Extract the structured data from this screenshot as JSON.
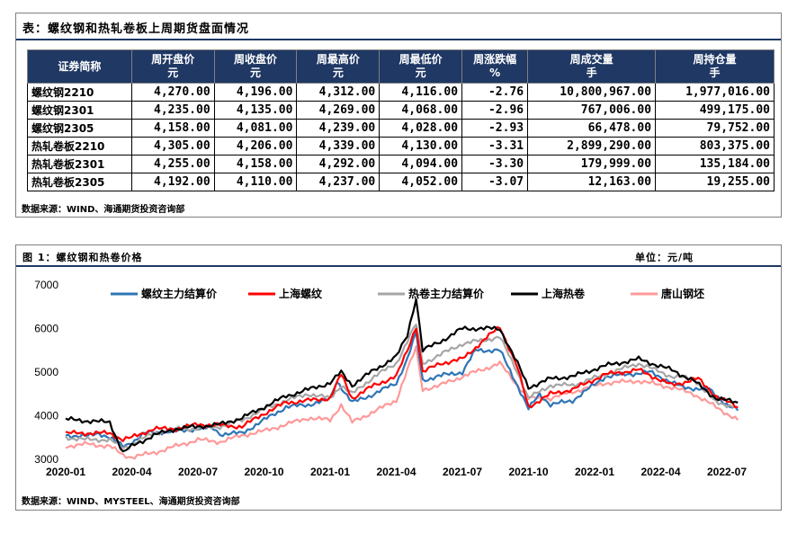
{
  "table": {
    "title": "表：螺纹钢和热轧卷板上周期货盘面情况",
    "headers": [
      {
        "l1": "证券简称",
        "l2": ""
      },
      {
        "l1": "周开盘价",
        "l2": "元"
      },
      {
        "l1": "周收盘价",
        "l2": "元"
      },
      {
        "l1": "周最高价",
        "l2": "元"
      },
      {
        "l1": "周最低价",
        "l2": "元"
      },
      {
        "l1": "周涨跌幅",
        "l2": "%"
      },
      {
        "l1": "周成交量",
        "l2": "手"
      },
      {
        "l1": "周持仓量",
        "l2": "手"
      }
    ],
    "rows": [
      [
        "螺纹钢2210",
        "4,270.00",
        "4,196.00",
        "4,312.00",
        "4,116.00",
        "-2.76",
        "10,800,967.00",
        "1,977,016.00"
      ],
      [
        "螺纹钢2301",
        "4,235.00",
        "4,135.00",
        "4,269.00",
        "4,068.00",
        "-2.96",
        "767,006.00",
        "499,175.00"
      ],
      [
        "螺纹钢2305",
        "4,158.00",
        "4,081.00",
        "4,239.00",
        "4,028.00",
        "-2.93",
        "66,478.00",
        "79,752.00"
      ],
      [
        "热轧卷板2210",
        "4,305.00",
        "4,206.00",
        "4,339.00",
        "4,130.00",
        "-3.31",
        "2,899,290.00",
        "803,375.00"
      ],
      [
        "热轧卷板2301",
        "4,255.00",
        "4,158.00",
        "4,292.00",
        "4,094.00",
        "-3.30",
        "179,999.00",
        "135,184.00"
      ],
      [
        "热轧卷板2305",
        "4,192.00",
        "4,110.00",
        "4,237.00",
        "4,052.00",
        "-3.07",
        "12,163.00",
        "19,255.00"
      ]
    ],
    "source": "数据来源：WIND、海通期货投资咨询部"
  },
  "figure": {
    "title": "图 1：螺纹钢和热卷价格",
    "unit": "单位：元/吨",
    "source": "数据来源：WIND、MYSTEEL、海通期货投资咨询部"
  },
  "chart_data": {
    "type": "line",
    "title": "",
    "xlabel": "",
    "ylabel": "",
    "ylim": [
      3000,
      7000
    ],
    "yticks": [
      "3000",
      "4000",
      "5000",
      "6000",
      "7000"
    ],
    "xticks": [
      "2020-01",
      "2020-04",
      "2020-07",
      "2020-10",
      "2021-01",
      "2021-04",
      "2021-07",
      "2021-10",
      "2022-01",
      "2022-04",
      "2022-07"
    ],
    "legend_position": "top",
    "grid": false,
    "series": [
      {
        "name": "螺纹主力结算价",
        "color": "#2e75b6",
        "points": [
          [
            0,
            3550
          ],
          [
            1,
            3530
          ],
          [
            1.5,
            3600
          ],
          [
            2,
            3500
          ],
          [
            2.6,
            3300
          ],
          [
            3,
            3390
          ],
          [
            3.6,
            3600
          ],
          [
            4,
            3620
          ],
          [
            5,
            3640
          ],
          [
            6,
            3700
          ],
          [
            6.7,
            3720
          ],
          [
            7,
            3580
          ],
          [
            8,
            3600
          ],
          [
            9,
            3900
          ],
          [
            10,
            4200
          ],
          [
            11,
            4250
          ],
          [
            12,
            4380
          ],
          [
            12.3,
            4800
          ],
          [
            13,
            4300
          ],
          [
            14,
            4500
          ],
          [
            15,
            4750
          ],
          [
            15.5,
            5300
          ],
          [
            15.9,
            5900
          ],
          [
            16.2,
            4800
          ],
          [
            16.8,
            4900
          ],
          [
            18,
            5000
          ],
          [
            18.6,
            5500
          ],
          [
            19.7,
            5500
          ],
          [
            20.4,
            4800
          ],
          [
            21,
            4150
          ],
          [
            21.5,
            4500
          ],
          [
            22,
            4250
          ],
          [
            23,
            4350
          ],
          [
            24.5,
            4900
          ],
          [
            26.5,
            5000
          ],
          [
            28,
            4650
          ],
          [
            29.2,
            4600
          ],
          [
            30,
            4260
          ],
          [
            30.5,
            4120
          ]
        ]
      },
      {
        "name": "上海螺纹",
        "color": "#ff0000",
        "points": [
          [
            0,
            3600
          ],
          [
            1,
            3600
          ],
          [
            2,
            3600
          ],
          [
            2.6,
            3450
          ],
          [
            3,
            3500
          ],
          [
            4,
            3700
          ],
          [
            5,
            3700
          ],
          [
            6,
            3800
          ],
          [
            7,
            3780
          ],
          [
            8,
            3750
          ],
          [
            9,
            4050
          ],
          [
            10,
            4300
          ],
          [
            11,
            4350
          ],
          [
            12,
            4400
          ],
          [
            12.5,
            4950
          ],
          [
            13,
            4400
          ],
          [
            14,
            4700
          ],
          [
            15,
            4900
          ],
          [
            15.5,
            5500
          ],
          [
            15.9,
            6050
          ],
          [
            16.2,
            5000
          ],
          [
            17,
            5200
          ],
          [
            18,
            5300
          ],
          [
            19.7,
            6050
          ],
          [
            20.5,
            5100
          ],
          [
            21,
            4200
          ],
          [
            22,
            4500
          ],
          [
            23,
            4600
          ],
          [
            24.5,
            4950
          ],
          [
            26,
            5050
          ],
          [
            27.5,
            4700
          ],
          [
            28.7,
            4850
          ],
          [
            29.5,
            4450
          ],
          [
            30.5,
            4200
          ]
        ]
      },
      {
        "name": "热卷主力结算价",
        "color": "#a6a6a6",
        "points": [
          [
            0,
            3500
          ],
          [
            1,
            3450
          ],
          [
            2,
            3450
          ],
          [
            2.6,
            3250
          ],
          [
            3,
            3350
          ],
          [
            4,
            3600
          ],
          [
            5,
            3700
          ],
          [
            6,
            3700
          ],
          [
            7,
            3750
          ],
          [
            8,
            3900
          ],
          [
            9,
            4150
          ],
          [
            10,
            4350
          ],
          [
            11,
            4500
          ],
          [
            12,
            4400
          ],
          [
            12.5,
            4700
          ],
          [
            13,
            4500
          ],
          [
            14,
            4900
          ],
          [
            15,
            5200
          ],
          [
            15.5,
            5700
          ],
          [
            15.9,
            6100
          ],
          [
            16.2,
            5200
          ],
          [
            17,
            5400
          ],
          [
            18,
            5650
          ],
          [
            19.7,
            5800
          ],
          [
            20.5,
            5000
          ],
          [
            21,
            4400
          ],
          [
            22,
            4700
          ],
          [
            23,
            4700
          ],
          [
            24.5,
            4950
          ],
          [
            26,
            5200
          ],
          [
            27.5,
            4900
          ],
          [
            28.5,
            4850
          ],
          [
            29.5,
            4300
          ],
          [
            30.5,
            4200
          ]
        ]
      },
      {
        "name": "上海热卷",
        "color": "#000000",
        "points": [
          [
            0,
            3920
          ],
          [
            1,
            3880
          ],
          [
            2,
            3850
          ],
          [
            2.6,
            3150
          ],
          [
            3,
            3300
          ],
          [
            4,
            3550
          ],
          [
            5,
            3700
          ],
          [
            6,
            3750
          ],
          [
            7,
            3800
          ],
          [
            8,
            3950
          ],
          [
            9,
            4200
          ],
          [
            10,
            4450
          ],
          [
            11,
            4600
          ],
          [
            12,
            4750
          ],
          [
            12.5,
            5000
          ],
          [
            13,
            4700
          ],
          [
            14,
            5050
          ],
          [
            15,
            5350
          ],
          [
            15.5,
            5850
          ],
          [
            15.9,
            6700
          ],
          [
            16.2,
            5500
          ],
          [
            17,
            5700
          ],
          [
            18,
            6000
          ],
          [
            19.7,
            6000
          ],
          [
            20.5,
            5200
          ],
          [
            21,
            4650
          ],
          [
            22,
            4850
          ],
          [
            23,
            4900
          ],
          [
            24.5,
            5150
          ],
          [
            26,
            5300
          ],
          [
            27.5,
            5050
          ],
          [
            28.5,
            4800
          ],
          [
            29.5,
            4400
          ],
          [
            30.5,
            4300
          ]
        ]
      },
      {
        "name": "唐山钢坯",
        "color": "#ff9999",
        "points": [
          [
            0,
            3300
          ],
          [
            1,
            3350
          ],
          [
            2,
            3300
          ],
          [
            2.6,
            3100
          ],
          [
            3,
            3050
          ],
          [
            4,
            3150
          ],
          [
            5,
            3300
          ],
          [
            6,
            3450
          ],
          [
            7,
            3400
          ],
          [
            8,
            3550
          ],
          [
            9,
            3650
          ],
          [
            10,
            3800
          ],
          [
            11,
            3950
          ],
          [
            12,
            3900
          ],
          [
            12.5,
            4250
          ],
          [
            13,
            3850
          ],
          [
            14,
            4100
          ],
          [
            15,
            4350
          ],
          [
            15.5,
            5050
          ],
          [
            15.9,
            5550
          ],
          [
            16.2,
            4600
          ],
          [
            17,
            4700
          ],
          [
            18,
            4900
          ],
          [
            19.7,
            5200
          ],
          [
            20.5,
            4700
          ],
          [
            21,
            4400
          ],
          [
            22,
            4400
          ],
          [
            23,
            4550
          ],
          [
            24.5,
            4750
          ],
          [
            26,
            4800
          ],
          [
            27.5,
            4650
          ],
          [
            28.5,
            4500
          ],
          [
            29.5,
            4200
          ],
          [
            30.5,
            3900
          ]
        ]
      }
    ]
  }
}
